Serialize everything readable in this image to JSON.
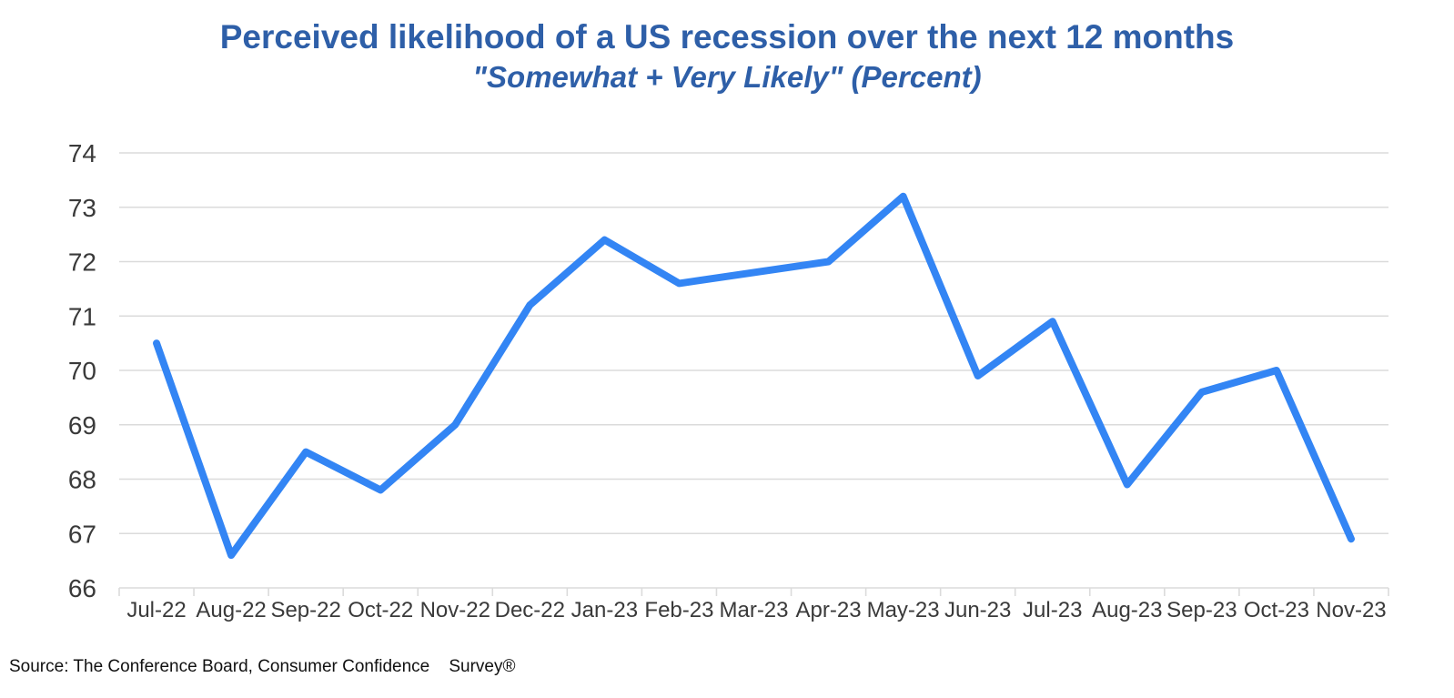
{
  "header": {
    "title": "Perceived likelihood of a US recession over the next 12 months",
    "subtitle": "\"Somewhat + Very Likely\" (Percent)"
  },
  "footer": {
    "source": "Source: The Conference Board, Consumer Confidence    Survey®"
  },
  "colors": {
    "title_text": "#2E5FA8",
    "line": "#3385F4",
    "grid": "#DBDBDB",
    "axis_text": "#3A3A3A",
    "source_text": "#111111",
    "background": "#FFFFFF"
  },
  "chart_data": {
    "type": "line",
    "title": "Perceived likelihood of a US recession over the next 12 months",
    "subtitle": "\"Somewhat + Very Likely\" (Percent)",
    "categories": [
      "Jul-22",
      "Aug-22",
      "Sep-22",
      "Oct-22",
      "Nov-22",
      "Dec-22",
      "Jan-23",
      "Feb-23",
      "Mar-23",
      "Apr-23",
      "May-23",
      "Jun-23",
      "Jul-23",
      "Aug-23",
      "Sep-23",
      "Oct-23",
      "Nov-23"
    ],
    "series": [
      {
        "name": "Somewhat + Very Likely (Percent)",
        "values": [
          70.5,
          66.6,
          68.5,
          67.8,
          69.0,
          71.2,
          72.4,
          71.6,
          71.8,
          72.0,
          73.2,
          69.9,
          70.9,
          67.9,
          69.6,
          70.0,
          66.9
        ]
      }
    ],
    "xlabel": "",
    "ylabel": "",
    "ylim": [
      66,
      74
    ],
    "ytick_step": 1,
    "grid": "horizontal",
    "legend": "none",
    "source_note": "Source: The Conference Board, Consumer Confidence Survey®"
  }
}
